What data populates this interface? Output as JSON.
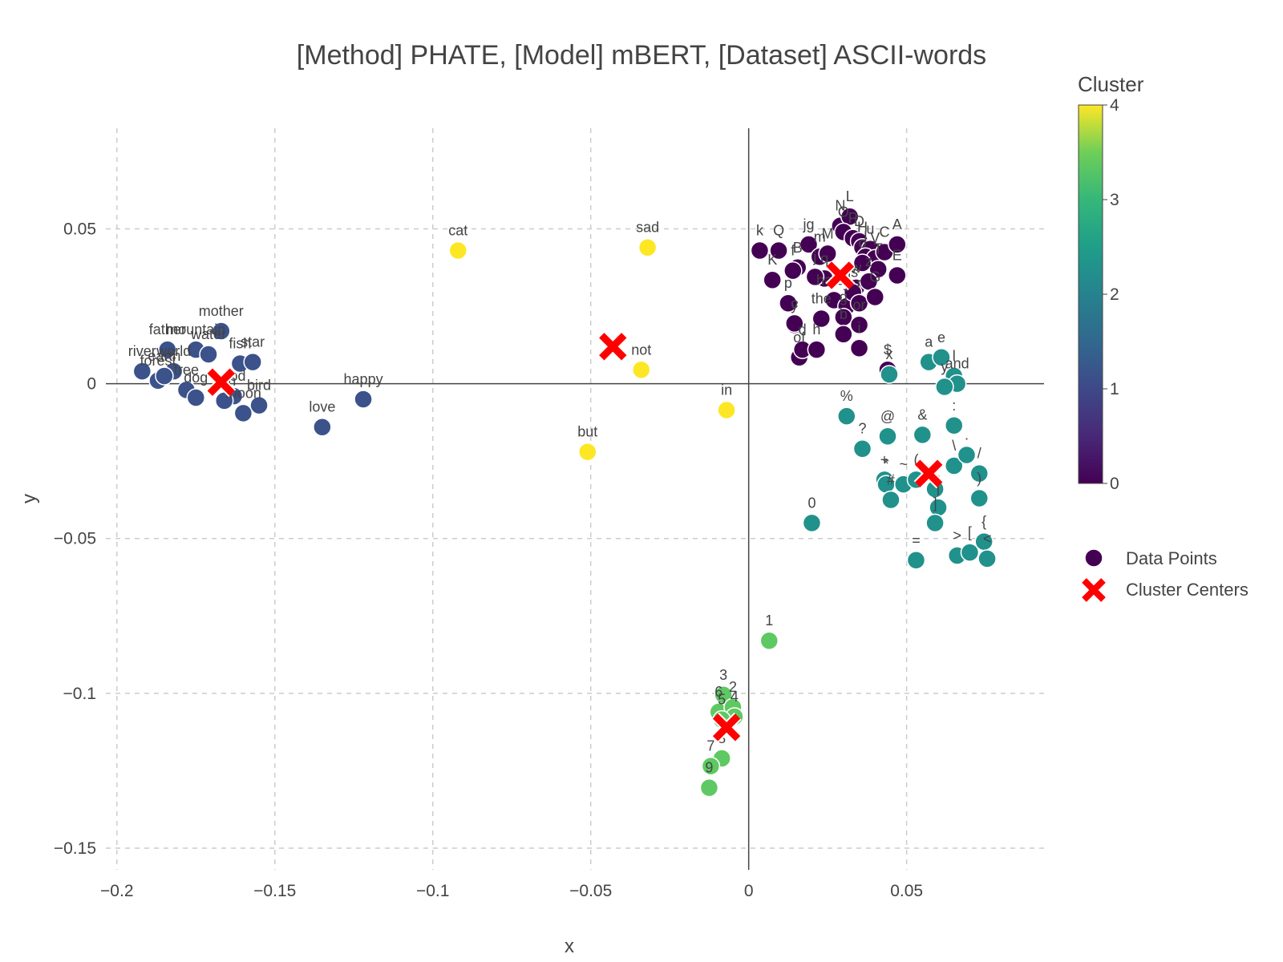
{
  "chart_data": {
    "type": "scatter",
    "title": "[Method] PHATE, [Model] mBERT, [Dataset] ASCII-words",
    "xlabel": "x",
    "ylabel": "y",
    "xlim": [
      -0.2035,
      0.0935
    ],
    "ylim": [
      -0.157,
      0.0825
    ],
    "x_ticks": [
      {
        "value": -0.2,
        "label": "−0.2"
      },
      {
        "value": -0.15,
        "label": "−0.15"
      },
      {
        "value": -0.1,
        "label": "−0.1"
      },
      {
        "value": -0.05,
        "label": "−0.05"
      },
      {
        "value": 0,
        "label": "0"
      },
      {
        "value": 0.05,
        "label": "0.05"
      }
    ],
    "y_ticks": [
      {
        "value": 0.05,
        "label": "0.05"
      },
      {
        "value": 0,
        "label": "0"
      },
      {
        "value": -0.05,
        "label": "−0.05"
      },
      {
        "value": -0.1,
        "label": "−0.1"
      },
      {
        "value": -0.15,
        "label": "−0.15"
      }
    ],
    "grid": true,
    "colorbar": {
      "title": "Cluster",
      "ticks": [
        {
          "value": 4,
          "label": "4"
        },
        {
          "value": 3,
          "label": "3"
        },
        {
          "value": 2,
          "label": "2"
        },
        {
          "value": 1,
          "label": "1"
        },
        {
          "value": 0,
          "label": "0"
        }
      ],
      "range": [
        0,
        4
      ],
      "colors": [
        "#440154",
        "#3b528b",
        "#21918c",
        "#5ec962",
        "#fde725"
      ]
    },
    "legend": {
      "position": "right",
      "entries": [
        {
          "name": "Data Points",
          "marker": "circle",
          "color": "#440154"
        },
        {
          "name": "Cluster Centers",
          "marker": "x",
          "color": "#ff0000"
        }
      ]
    },
    "cluster_colors": [
      "#440154",
      "#3b528b",
      "#21918c",
      "#5ec962",
      "#fde725"
    ],
    "centers": [
      {
        "cluster": 0,
        "x": 0.029,
        "y": 0.035
      },
      {
        "cluster": 1,
        "x": -0.167,
        "y": 0.0005
      },
      {
        "cluster": 2,
        "x": 0.057,
        "y": -0.029
      },
      {
        "cluster": 3,
        "x": -0.007,
        "y": -0.111
      },
      {
        "cluster": 4,
        "x": -0.043,
        "y": 0.012
      }
    ],
    "points": [
      {
        "label": "cat",
        "x": -0.092,
        "y": 0.043,
        "cluster": 4
      },
      {
        "label": "sad",
        "x": -0.032,
        "y": 0.044,
        "cluster": 4
      },
      {
        "label": "not",
        "x": -0.034,
        "y": 0.0045,
        "cluster": 4
      },
      {
        "label": "in",
        "x": -0.007,
        "y": -0.0085,
        "cluster": 4
      },
      {
        "label": "but",
        "x": -0.051,
        "y": -0.022,
        "cluster": 4
      },
      {
        "label": "mother",
        "x": -0.167,
        "y": 0.017,
        "cluster": 1
      },
      {
        "label": "father",
        "x": -0.184,
        "y": 0.011,
        "cluster": 1
      },
      {
        "label": "mountain",
        "x": -0.175,
        "y": 0.011,
        "cluster": 1
      },
      {
        "label": "water",
        "x": -0.171,
        "y": 0.0095,
        "cluster": 1
      },
      {
        "label": "fish",
        "x": -0.161,
        "y": 0.0065,
        "cluster": 1
      },
      {
        "label": "star",
        "x": -0.157,
        "y": 0.007,
        "cluster": 1
      },
      {
        "label": "river",
        "x": -0.192,
        "y": 0.004,
        "cluster": 1
      },
      {
        "label": "forest",
        "x": -0.187,
        "y": 0.001,
        "cluster": 1
      },
      {
        "label": "world",
        "x": -0.182,
        "y": 0.004,
        "cluster": 1
      },
      {
        "label": "earth",
        "x": -0.185,
        "y": 0.0025,
        "cluster": 1
      },
      {
        "label": "tree",
        "x": -0.178,
        "y": -0.002,
        "cluster": 1
      },
      {
        "label": "dog",
        "x": -0.175,
        "y": -0.0045,
        "cluster": 1
      },
      {
        "label": "god",
        "x": -0.163,
        "y": -0.004,
        "cluster": 1
      },
      {
        "label": "bird",
        "x": -0.155,
        "y": -0.007,
        "cluster": 1
      },
      {
        "label": "sun",
        "x": -0.166,
        "y": -0.0055,
        "cluster": 1
      },
      {
        "label": "moon",
        "x": -0.16,
        "y": -0.0095,
        "cluster": 1
      },
      {
        "label": "happy",
        "x": -0.122,
        "y": -0.005,
        "cluster": 1
      },
      {
        "label": "love",
        "x": -0.135,
        "y": -0.014,
        "cluster": 1
      },
      {
        "label": "k",
        "x": 0.0035,
        "y": 0.043,
        "cluster": 0
      },
      {
        "label": "Q",
        "x": 0.0095,
        "y": 0.043,
        "cluster": 0
      },
      {
        "label": "K",
        "x": 0.0075,
        "y": 0.0335,
        "cluster": 0
      },
      {
        "label": "jg",
        "x": 0.019,
        "y": 0.045,
        "cluster": 0
      },
      {
        "label": "B",
        "x": 0.0155,
        "y": 0.0375,
        "cluster": 0
      },
      {
        "label": "f",
        "x": 0.014,
        "y": 0.0365,
        "cluster": 0
      },
      {
        "label": "p",
        "x": 0.0125,
        "y": 0.026,
        "cluster": 0
      },
      {
        "label": "y",
        "x": 0.0145,
        "y": 0.019,
        "cluster": 0
      },
      {
        "label": "m",
        "x": 0.0225,
        "y": 0.041,
        "cluster": 0
      },
      {
        "label": "M",
        "x": 0.025,
        "y": 0.042,
        "cluster": 0
      },
      {
        "label": "N",
        "x": 0.029,
        "y": 0.051,
        "cluster": 0
      },
      {
        "label": "L",
        "x": 0.032,
        "y": 0.054,
        "cluster": 0
      },
      {
        "label": "O",
        "x": 0.03,
        "y": 0.049,
        "cluster": 0
      },
      {
        "label": "P",
        "x": 0.033,
        "y": 0.047,
        "cluster": 0
      },
      {
        "label": "D",
        "x": 0.035,
        "y": 0.046,
        "cluster": 0
      },
      {
        "label": "H",
        "x": 0.036,
        "y": 0.044,
        "cluster": 0
      },
      {
        "label": "u",
        "x": 0.0385,
        "y": 0.0435,
        "cluster": 0
      },
      {
        "label": "I",
        "x": 0.037,
        "y": 0.041,
        "cluster": 0
      },
      {
        "label": "V",
        "x": 0.04,
        "y": 0.0405,
        "cluster": 0
      },
      {
        "label": "C",
        "x": 0.043,
        "y": 0.0425,
        "cluster": 0
      },
      {
        "label": "A",
        "x": 0.047,
        "y": 0.045,
        "cluster": 0
      },
      {
        "label": "T",
        "x": 0.041,
        "y": 0.037,
        "cluster": 0
      },
      {
        "label": "E",
        "x": 0.047,
        "y": 0.035,
        "cluster": 0
      },
      {
        "label": "o",
        "x": 0.036,
        "y": 0.039,
        "cluster": 0
      },
      {
        "label": "w",
        "x": 0.034,
        "y": 0.031,
        "cluster": 0
      },
      {
        "label": "z",
        "x": 0.038,
        "y": 0.033,
        "cluster": 0
      },
      {
        "label": "hates",
        "x": 0.027,
        "y": 0.027,
        "cluster": 0
      },
      {
        "label": "s",
        "x": 0.031,
        "y": 0.025,
        "cluster": 0
      },
      {
        "label": "is",
        "x": 0.033,
        "y": 0.0295,
        "cluster": 0
      },
      {
        "label": "r",
        "x": 0.035,
        "y": 0.026,
        "cluster": 0
      },
      {
        "label": "G",
        "x": 0.04,
        "y": 0.028,
        "cluster": 0
      },
      {
        "label": "q",
        "x": 0.024,
        "y": 0.034,
        "cluster": 0
      },
      {
        "label": "j",
        "x": 0.021,
        "y": 0.0345,
        "cluster": 0
      },
      {
        "label": "g",
        "x": 0.03,
        "y": 0.0215,
        "cluster": 0
      },
      {
        "label": "the",
        "x": 0.023,
        "y": 0.021,
        "cluster": 0
      },
      {
        "label": "or",
        "x": 0.035,
        "y": 0.019,
        "cluster": 0
      },
      {
        "label": "b",
        "x": 0.03,
        "y": 0.016,
        "cluster": 0
      },
      {
        "label": "c",
        "x": 0.0145,
        "y": 0.0195,
        "cluster": 0
      },
      {
        "label": "of",
        "x": 0.016,
        "y": 0.0085,
        "cluster": 0
      },
      {
        "label": "d",
        "x": 0.017,
        "y": 0.011,
        "cluster": 0
      },
      {
        "label": "h",
        "x": 0.0215,
        "y": 0.011,
        "cluster": 0
      },
      {
        "label": "i",
        "x": 0.035,
        "y": 0.0115,
        "cluster": 0
      },
      {
        "label": "$",
        "x": 0.044,
        "y": 0.0045,
        "cluster": 0
      },
      {
        "label": "x",
        "x": 0.0445,
        "y": 0.003,
        "cluster": 2
      },
      {
        "label": "a",
        "x": 0.057,
        "y": 0.007,
        "cluster": 2
      },
      {
        "label": "e",
        "x": 0.061,
        "y": 0.0085,
        "cluster": 2
      },
      {
        "label": "l",
        "x": 0.065,
        "y": 0.0025,
        "cluster": 2
      },
      {
        "label": "and",
        "x": 0.066,
        "y": 0.0,
        "cluster": 2
      },
      {
        "label": "y",
        "x": 0.062,
        "y": -0.001,
        "cluster": 2
      },
      {
        "label": "%",
        "x": 0.031,
        "y": -0.0105,
        "cluster": 2
      },
      {
        "label": "?",
        "x": 0.036,
        "y": -0.021,
        "cluster": 2
      },
      {
        "label": "@",
        "x": 0.044,
        "y": -0.017,
        "cluster": 2
      },
      {
        "label": "&",
        "x": 0.055,
        "y": -0.0165,
        "cluster": 2
      },
      {
        "label": ":",
        "x": 0.065,
        "y": -0.0135,
        "cluster": 2
      },
      {
        "label": "\\",
        "x": 0.065,
        "y": -0.0265,
        "cluster": 2
      },
      {
        "label": ".",
        "x": 0.069,
        "y": -0.023,
        "cluster": 2
      },
      {
        "label": "/",
        "x": 0.073,
        "y": -0.029,
        "cluster": 2
      },
      {
        "label": ")",
        "x": 0.073,
        "y": -0.037,
        "cluster": 2
      },
      {
        "label": "+",
        "x": 0.043,
        "y": -0.031,
        "cluster": 2
      },
      {
        "label": "*",
        "x": 0.0435,
        "y": -0.0325,
        "cluster": 2
      },
      {
        "label": "~",
        "x": 0.049,
        "y": -0.0325,
        "cluster": 2
      },
      {
        "label": "(",
        "x": 0.053,
        "y": -0.031,
        "cluster": 2
      },
      {
        "label": "#",
        "x": 0.045,
        "y": -0.0375,
        "cluster": 2
      },
      {
        "label": "_",
        "x": 0.059,
        "y": -0.034,
        "cluster": 2
      },
      {
        "label": "|",
        "x": 0.06,
        "y": -0.04,
        "cluster": 2
      },
      {
        "label": "]",
        "x": 0.059,
        "y": -0.045,
        "cluster": 2
      },
      {
        "label": "0",
        "x": 0.02,
        "y": -0.045,
        "cluster": 2
      },
      {
        "label": "=",
        "x": 0.053,
        "y": -0.057,
        "cluster": 2
      },
      {
        "label": ">",
        "x": 0.066,
        "y": -0.0555,
        "cluster": 2
      },
      {
        "label": "[",
        "x": 0.07,
        "y": -0.0545,
        "cluster": 2
      },
      {
        "label": "{",
        "x": 0.0745,
        "y": -0.051,
        "cluster": 2
      },
      {
        "label": "<",
        "x": 0.0755,
        "y": -0.0565,
        "cluster": 2
      },
      {
        "label": "1",
        "x": 0.0065,
        "y": -0.083,
        "cluster": 3
      },
      {
        "label": "3",
        "x": -0.008,
        "y": -0.1005,
        "cluster": 3
      },
      {
        "label": "6",
        "x": -0.0095,
        "y": -0.106,
        "cluster": 3
      },
      {
        "label": "2",
        "x": -0.005,
        "y": -0.1045,
        "cluster": 3
      },
      {
        "label": "4",
        "x": -0.0045,
        "y": -0.1075,
        "cluster": 3
      },
      {
        "label": "5",
        "x": -0.0085,
        "y": -0.1085,
        "cluster": 3
      },
      {
        "label": "8",
        "x": -0.0085,
        "y": -0.121,
        "cluster": 3
      },
      {
        "label": "7",
        "x": -0.012,
        "y": -0.1235,
        "cluster": 3
      },
      {
        "label": "9",
        "x": -0.0125,
        "y": -0.1305,
        "cluster": 3
      }
    ]
  }
}
